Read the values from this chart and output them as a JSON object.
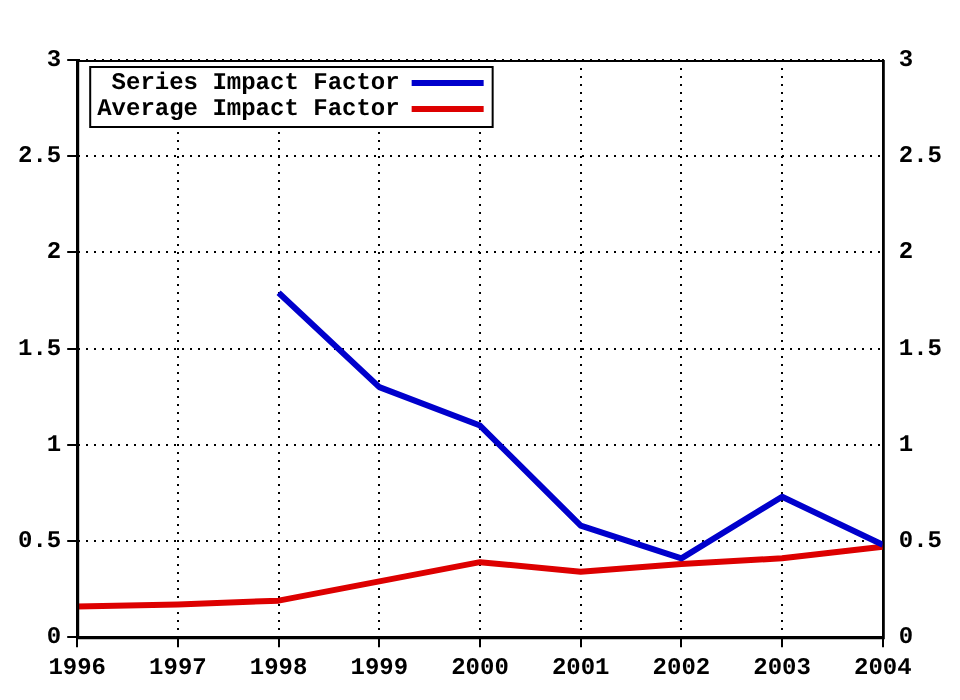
{
  "chart_data": {
    "type": "line",
    "x": [
      1996,
      1997,
      1998,
      1999,
      2000,
      2001,
      2002,
      2003,
      2004
    ],
    "series": [
      {
        "name": "Series Impact Factor",
        "color": "#0000cc",
        "x": [
          1998,
          1999,
          2000,
          2001,
          2002,
          2003,
          2004
        ],
        "values": [
          1.79,
          1.3,
          1.1,
          0.58,
          0.41,
          0.73,
          0.48
        ]
      },
      {
        "name": "Average Impact Factor",
        "color": "#dd0000",
        "values": [
          0.16,
          0.17,
          0.19,
          0.29,
          0.39,
          0.34,
          0.38,
          0.41,
          0.47
        ]
      }
    ],
    "xlim": [
      1996,
      2004
    ],
    "xticks": [
      1996,
      1997,
      1998,
      1999,
      2000,
      2001,
      2002,
      2003,
      2004
    ],
    "ylim": [
      0,
      3
    ],
    "yticks": [
      0,
      0.5,
      1,
      1.5,
      2,
      2.5,
      3
    ],
    "y2lim": [
      0,
      3
    ],
    "y2ticks": [
      0,
      0.5,
      1,
      1.5,
      2,
      2.5,
      3
    ],
    "grid": true,
    "legend": "top left",
    "marker": "none",
    "line_style": "solid"
  }
}
